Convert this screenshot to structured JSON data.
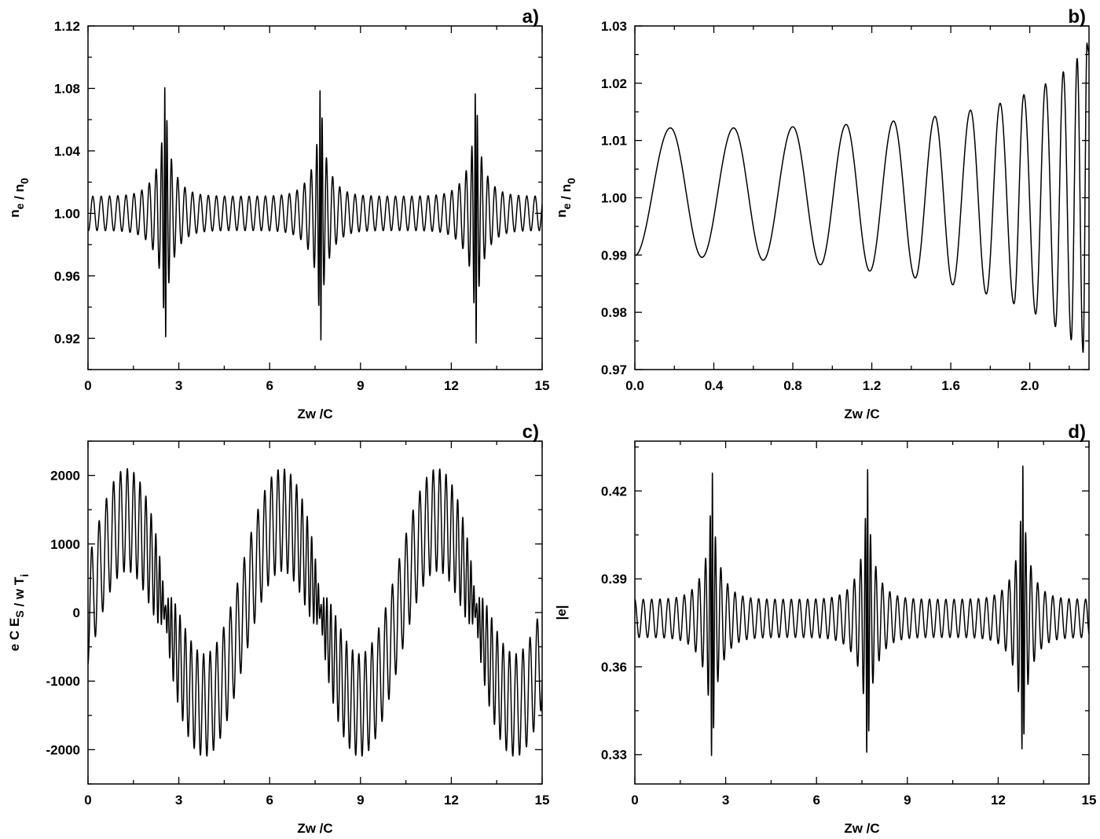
{
  "chart_data": [
    {
      "panel": "a)",
      "type": "line",
      "xlabel": "Zw /C",
      "ylabel": "n_e / n_0",
      "xlim": [
        0,
        15
      ],
      "ylim": [
        0.9,
        1.12
      ],
      "xticks": [
        0,
        3,
        6,
        9,
        12,
        15
      ],
      "xtick_labels": [
        "0",
        "3",
        "6",
        "9",
        "12",
        "15"
      ],
      "yticks": [
        0.92,
        0.96,
        1.0,
        1.04,
        1.08,
        1.12
      ],
      "ytick_labels": [
        "0.92",
        "0.96",
        "1.00",
        "1.04",
        "1.08",
        "1.12"
      ],
      "grid": false,
      "series": [
        {
          "baseline": 1.0,
          "base_amplitude": 0.011,
          "peak_amplitude": 0.091,
          "peak_x": [
            2.55,
            7.68,
            12.81
          ],
          "period": 5.13,
          "base_oscillation_period": 0.3,
          "start_value": 0.99
        }
      ]
    },
    {
      "panel": "b)",
      "type": "line",
      "xlabel": "Zw /C",
      "ylabel": "n_e / n_0",
      "xlim": [
        0,
        2.3
      ],
      "ylim": [
        0.97,
        1.03
      ],
      "xticks": [
        0.0,
        0.4,
        0.8,
        1.2,
        1.6,
        2.0
      ],
      "xtick_labels": [
        "0.0",
        "0.4",
        "0.8",
        "1.2",
        "1.6",
        "2.0"
      ],
      "yticks": [
        0.97,
        0.98,
        0.99,
        1.0,
        1.01,
        1.02,
        1.03
      ],
      "ytick_labels": [
        "0.97",
        "0.98",
        "0.99",
        "1.00",
        "1.01",
        "1.02",
        "1.03"
      ],
      "grid": false,
      "series": [
        {
          "maxima": [
            [
              0.18,
              1.0122
            ],
            [
              0.5,
              1.0122
            ],
            [
              0.8,
              1.0124
            ],
            [
              1.07,
              1.0128
            ],
            [
              1.31,
              1.0134
            ],
            [
              1.52,
              1.0142
            ],
            [
              1.7,
              1.0153
            ],
            [
              1.85,
              1.0165
            ],
            [
              1.97,
              1.018
            ],
            [
              2.08,
              1.0199
            ],
            [
              2.17,
              1.022
            ],
            [
              2.24,
              1.0243
            ],
            [
              2.29,
              1.027
            ]
          ],
          "minima": [
            [
              0.0,
              0.9899
            ],
            [
              0.34,
              0.9896
            ],
            [
              0.65,
              0.9891
            ],
            [
              0.94,
              0.9883
            ],
            [
              1.19,
              0.9872
            ],
            [
              1.42,
              0.986
            ],
            [
              1.61,
              0.9848
            ],
            [
              1.78,
              0.9832
            ],
            [
              1.92,
              0.9815
            ],
            [
              2.03,
              0.9797
            ],
            [
              2.13,
              0.9775
            ],
            [
              2.21,
              0.9752
            ],
            [
              2.27,
              0.973
            ]
          ]
        }
      ]
    },
    {
      "panel": "c)",
      "type": "line",
      "xlabel": "Zw /C",
      "ylabel": "e C E_S / w T_i",
      "xlim": [
        0,
        15
      ],
      "ylim": [
        -2500,
        2500
      ],
      "xticks": [
        0,
        3,
        6,
        9,
        12,
        15
      ],
      "xtick_labels": [
        "0",
        "3",
        "6",
        "9",
        "12",
        "15"
      ],
      "yticks": [
        -2000,
        -1000,
        0,
        1000,
        2000
      ],
      "ytick_labels": [
        "-2000",
        "-1000",
        "0",
        "1000",
        "2000"
      ],
      "grid": false,
      "series": [
        {
          "slow_period": 5.13,
          "slow_amplitude": 1350,
          "fast_amplitude": 750,
          "fast_oscillation_period": 0.3,
          "max_value": 2100,
          "min_value": -2100,
          "start_value": -750
        }
      ]
    },
    {
      "panel": "d)",
      "type": "line",
      "xlabel": "Zw /C",
      "ylabel": "|e|",
      "xlim": [
        0,
        15
      ],
      "ylim": [
        0.32,
        0.437
      ],
      "xticks": [
        0,
        3,
        6,
        9,
        12,
        15
      ],
      "xtick_labels": [
        "0",
        "3",
        "6",
        "9",
        "12",
        "15"
      ],
      "yticks": [
        0.33,
        0.36,
        0.39,
        0.42
      ],
      "ytick_labels": [
        "0.33",
        "0.36",
        "0.39",
        "0.42"
      ],
      "grid": false,
      "series": [
        {
          "baseline": 0.3765,
          "base_amplitude": 0.0065,
          "peak_amplitude": 0.055,
          "peak_x": [
            2.55,
            7.68,
            12.81
          ],
          "period": 5.13,
          "base_oscillation_period": 0.3,
          "start_value": 0.383
        }
      ]
    }
  ]
}
